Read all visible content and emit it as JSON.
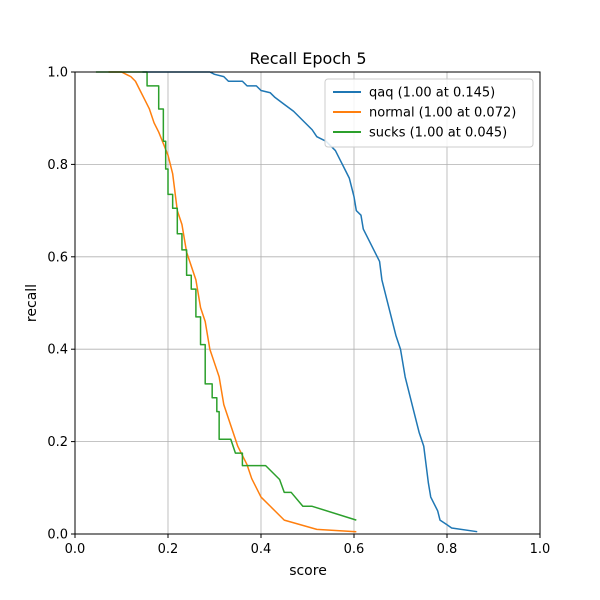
{
  "chart_data": {
    "type": "line",
    "title": "Recall Epoch 5",
    "xlabel": "score",
    "ylabel": "recall",
    "xlim": [
      0.0,
      1.0
    ],
    "ylim": [
      0.0,
      1.0
    ],
    "xticks": [
      "0.0",
      "0.2",
      "0.4",
      "0.6",
      "0.8",
      "1.0"
    ],
    "yticks": [
      "0.0",
      "0.2",
      "0.4",
      "0.6",
      "0.8",
      "1.0"
    ],
    "grid": true,
    "legend_position": "upper-right",
    "series": [
      {
        "name": "qaq (1.00 at 0.145)",
        "color": "#1f77b4",
        "points": [
          [
            0.145,
            1.0
          ],
          [
            0.29,
            1.0
          ],
          [
            0.3,
            0.995
          ],
          [
            0.32,
            0.99
          ],
          [
            0.33,
            0.98
          ],
          [
            0.36,
            0.98
          ],
          [
            0.37,
            0.97
          ],
          [
            0.39,
            0.97
          ],
          [
            0.4,
            0.96
          ],
          [
            0.42,
            0.955
          ],
          [
            0.43,
            0.945
          ],
          [
            0.45,
            0.93
          ],
          [
            0.47,
            0.915
          ],
          [
            0.48,
            0.905
          ],
          [
            0.49,
            0.895
          ],
          [
            0.5,
            0.885
          ],
          [
            0.51,
            0.875
          ],
          [
            0.52,
            0.86
          ],
          [
            0.54,
            0.85
          ],
          [
            0.56,
            0.83
          ],
          [
            0.57,
            0.81
          ],
          [
            0.58,
            0.79
          ],
          [
            0.59,
            0.77
          ],
          [
            0.6,
            0.73
          ],
          [
            0.605,
            0.7
          ],
          [
            0.615,
            0.69
          ],
          [
            0.62,
            0.66
          ],
          [
            0.63,
            0.64
          ],
          [
            0.645,
            0.61
          ],
          [
            0.655,
            0.59
          ],
          [
            0.66,
            0.55
          ],
          [
            0.67,
            0.51
          ],
          [
            0.68,
            0.47
          ],
          [
            0.69,
            0.43
          ],
          [
            0.7,
            0.4
          ],
          [
            0.705,
            0.37
          ],
          [
            0.71,
            0.34
          ],
          [
            0.72,
            0.3
          ],
          [
            0.73,
            0.26
          ],
          [
            0.74,
            0.22
          ],
          [
            0.75,
            0.19
          ],
          [
            0.755,
            0.15
          ],
          [
            0.76,
            0.11
          ],
          [
            0.765,
            0.08
          ],
          [
            0.77,
            0.07
          ],
          [
            0.78,
            0.05
          ],
          [
            0.785,
            0.03
          ],
          [
            0.8,
            0.02
          ],
          [
            0.81,
            0.013
          ],
          [
            0.865,
            0.005
          ]
        ]
      },
      {
        "name": "normal (1.00 at 0.072)",
        "color": "#ff7f0e",
        "points": [
          [
            0.072,
            1.0
          ],
          [
            0.1,
            1.0
          ],
          [
            0.12,
            0.99
          ],
          [
            0.13,
            0.98
          ],
          [
            0.14,
            0.96
          ],
          [
            0.15,
            0.94
          ],
          [
            0.16,
            0.92
          ],
          [
            0.17,
            0.89
          ],
          [
            0.18,
            0.87
          ],
          [
            0.19,
            0.845
          ],
          [
            0.2,
            0.82
          ],
          [
            0.21,
            0.78
          ],
          [
            0.215,
            0.74
          ],
          [
            0.22,
            0.7
          ],
          [
            0.23,
            0.67
          ],
          [
            0.235,
            0.64
          ],
          [
            0.24,
            0.61
          ],
          [
            0.25,
            0.58
          ],
          [
            0.26,
            0.55
          ],
          [
            0.265,
            0.52
          ],
          [
            0.27,
            0.49
          ],
          [
            0.28,
            0.46
          ],
          [
            0.285,
            0.43
          ],
          [
            0.29,
            0.4
          ],
          [
            0.3,
            0.37
          ],
          [
            0.31,
            0.34
          ],
          [
            0.315,
            0.31
          ],
          [
            0.32,
            0.28
          ],
          [
            0.33,
            0.25
          ],
          [
            0.34,
            0.22
          ],
          [
            0.35,
            0.19
          ],
          [
            0.36,
            0.17
          ],
          [
            0.37,
            0.15
          ],
          [
            0.38,
            0.12
          ],
          [
            0.39,
            0.1
          ],
          [
            0.4,
            0.08
          ],
          [
            0.42,
            0.06
          ],
          [
            0.44,
            0.04
          ],
          [
            0.45,
            0.03
          ],
          [
            0.52,
            0.01
          ],
          [
            0.605,
            0.005
          ]
        ]
      },
      {
        "name": "sucks (1.00 at 0.045)",
        "color": "#2ca02c",
        "points": [
          [
            0.045,
            1.0
          ],
          [
            0.155,
            1.0
          ],
          [
            0.155,
            0.97
          ],
          [
            0.18,
            0.97
          ],
          [
            0.18,
            0.92
          ],
          [
            0.19,
            0.92
          ],
          [
            0.19,
            0.85
          ],
          [
            0.195,
            0.85
          ],
          [
            0.195,
            0.79
          ],
          [
            0.2,
            0.79
          ],
          [
            0.2,
            0.735
          ],
          [
            0.21,
            0.735
          ],
          [
            0.21,
            0.705
          ],
          [
            0.22,
            0.705
          ],
          [
            0.22,
            0.65
          ],
          [
            0.23,
            0.65
          ],
          [
            0.23,
            0.615
          ],
          [
            0.24,
            0.615
          ],
          [
            0.24,
            0.56
          ],
          [
            0.25,
            0.56
          ],
          [
            0.25,
            0.53
          ],
          [
            0.26,
            0.53
          ],
          [
            0.26,
            0.47
          ],
          [
            0.27,
            0.47
          ],
          [
            0.27,
            0.41
          ],
          [
            0.28,
            0.41
          ],
          [
            0.28,
            0.325
          ],
          [
            0.295,
            0.325
          ],
          [
            0.295,
            0.295
          ],
          [
            0.305,
            0.295
          ],
          [
            0.305,
            0.265
          ],
          [
            0.31,
            0.265
          ],
          [
            0.31,
            0.205
          ],
          [
            0.335,
            0.205
          ],
          [
            0.345,
            0.175
          ],
          [
            0.36,
            0.175
          ],
          [
            0.36,
            0.148
          ],
          [
            0.41,
            0.148
          ],
          [
            0.44,
            0.118
          ],
          [
            0.45,
            0.09
          ],
          [
            0.465,
            0.09
          ],
          [
            0.49,
            0.06
          ],
          [
            0.51,
            0.06
          ],
          [
            0.605,
            0.03
          ]
        ]
      }
    ]
  }
}
